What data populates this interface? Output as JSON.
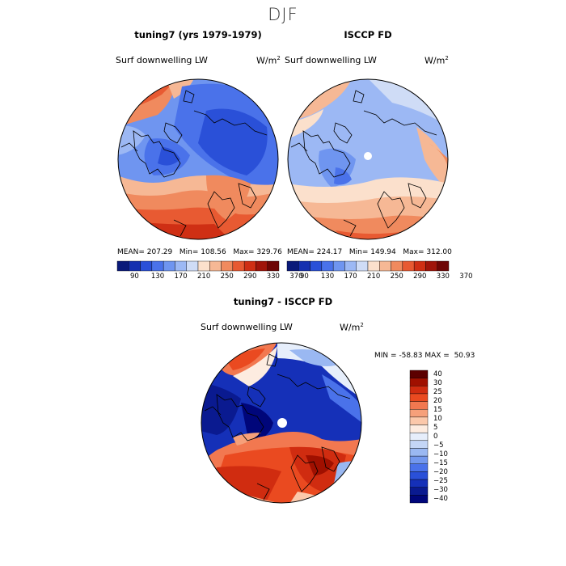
{
  "figure": {
    "title": "DJF"
  },
  "panels": {
    "model": {
      "title": "tuning7 (yrs 1979-1979)",
      "variable": "Surf downwelling LW",
      "units": "W/m",
      "units_exp": "2",
      "mean": "207.29",
      "min": "108.56",
      "max": "329.76"
    },
    "obs": {
      "title": "ISCCP FD",
      "variable": "Surf downwelling LW",
      "units": "W/m",
      "units_exp": "2",
      "mean": "224.17",
      "min": "149.94",
      "max": "312.00"
    },
    "diff": {
      "title": "tuning7 - ISCCP FD",
      "variable": "Surf downwelling LW",
      "units": "W/m",
      "units_exp": "2",
      "min": "-58.83",
      "max": "50.93"
    }
  },
  "labels": {
    "mean": "MEAN=",
    "min": "Min=",
    "max": "Max=",
    "min_upper": "MIN =",
    "max_upper": "MAX ="
  },
  "colorbar_abs": {
    "colors": [
      "#0a1a7a",
      "#1530b0",
      "#2a50d8",
      "#4a72ea",
      "#6f95f0",
      "#9cb8f4",
      "#cfdcf6",
      "#fbe0cc",
      "#f6b895",
      "#f08a5e",
      "#e85a32",
      "#cf2f14",
      "#a0140a",
      "#6e0505"
    ],
    "ticks": [
      "90",
      "130",
      "170",
      "210",
      "250",
      "290",
      "330",
      "370"
    ]
  },
  "colorbar_diff": {
    "colors": [
      "#5c0000",
      "#a01000",
      "#d02c10",
      "#ea4a20",
      "#f27850",
      "#f6a07a",
      "#fbc8aa",
      "#fdece0",
      "#e6eefb",
      "#c4d6f6",
      "#9ab8f2",
      "#7398ee",
      "#4a72ea",
      "#2a50d8",
      "#1530b8",
      "#0a1a90",
      "#00067a"
    ],
    "ticks": [
      "40",
      "30",
      "25",
      "20",
      "15",
      "10",
      "5",
      "0",
      "−5",
      "−10",
      "−15",
      "−20",
      "−25",
      "−30",
      "−40"
    ]
  }
}
